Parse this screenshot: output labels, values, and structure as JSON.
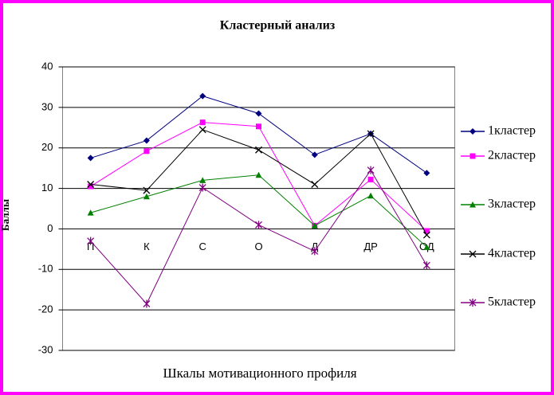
{
  "chart_data": {
    "type": "line",
    "title": "Кластерный анализ",
    "x_label": "Шкалы мотивационного профиля",
    "y_label": "Баллы",
    "categories": [
      "П",
      "К",
      "С",
      "О",
      "Д",
      "ДР",
      "ОД"
    ],
    "series": [
      {
        "name": "1кластер",
        "color": "#000080",
        "marker": "diamond",
        "values": [
          17.5,
          21.8,
          32.8,
          28.5,
          18.3,
          23.5,
          13.8
        ]
      },
      {
        "name": "2кластер",
        "color": "#ff00ff",
        "marker": "square",
        "values": [
          10.5,
          19.2,
          26.3,
          25.3,
          0.8,
          12.2,
          -0.5
        ]
      },
      {
        "name": "3кластер",
        "color": "#008000",
        "marker": "triangle",
        "values": [
          4,
          8,
          12,
          13.3,
          0.8,
          8.2,
          -4.5
        ]
      },
      {
        "name": "4кластер",
        "color": "#000000",
        "marker": "x",
        "values": [
          11,
          9.5,
          24.5,
          19.5,
          11,
          23.5,
          -1.5
        ]
      },
      {
        "name": "5кластер",
        "color": "#800080",
        "marker": "star",
        "values": [
          -3,
          -18.5,
          10.2,
          1,
          -5.5,
          14.5,
          -9
        ]
      }
    ],
    "ylim": [
      -30,
      40
    ],
    "yticks": [
      -30,
      -20,
      -10,
      0,
      10,
      20,
      30,
      40
    ],
    "grid": true,
    "legend": "right"
  }
}
